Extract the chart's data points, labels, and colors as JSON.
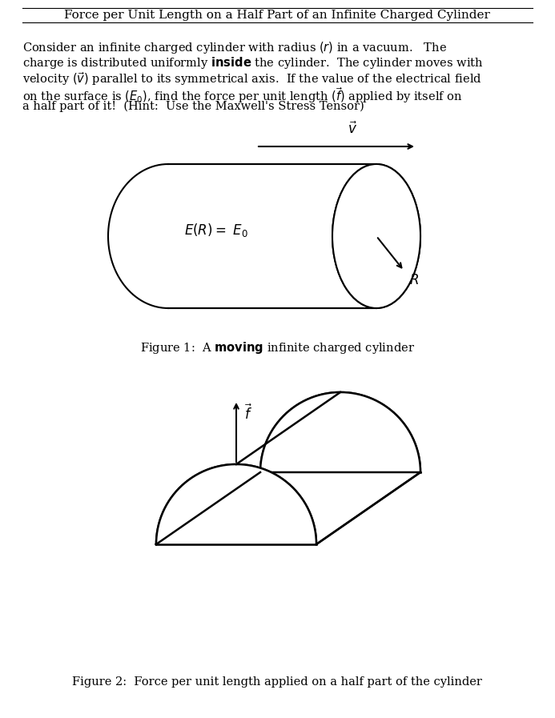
{
  "title": "Force per Unit Length on a Half Part of an Infinite Charged Cylinder",
  "body_lines": [
    "Consider an infinite charged cylinder with radius $(r)$ in a vacuum.   The",
    "charge is distributed uniformly $\\mathbf{inside}$ the cylinder.  The cylinder moves with",
    "velocity $(\\vec{v})$ parallel to its symmetrical axis.  If the value of the electrical field",
    "on the surface is $(E_0)$, find the force per unit length $(\\vec{f})$ applied by itself on",
    "a half part of it!  (Hint:  Use the Maxwell's Stress Tensor)"
  ],
  "fig1_caption_plain": "Figure 1:  A ",
  "fig1_caption_bold": "moving",
  "fig1_caption_rest": " infinite charged cylinder",
  "fig2_caption": "Figure 2:  Force per unit length applied on a half part of the cylinder",
  "background_color": "#ffffff",
  "title_fontsize": 11,
  "body_fontsize": 10.5,
  "caption_fontsize": 10.5
}
